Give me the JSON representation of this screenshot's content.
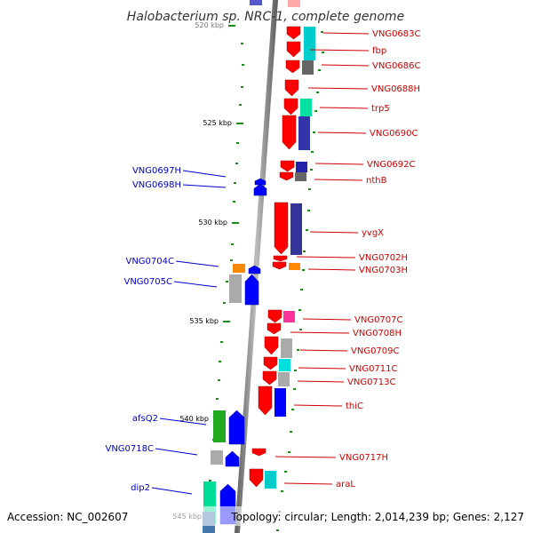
{
  "title": "Halobacterium sp. NRC-1, complete genome",
  "accession": "Accession: NC_002607",
  "topology": "Topology: circular; Length: 2,014,239 bp; Genes: 2,127",
  "colors": {
    "forward_label": "#cc0000",
    "reverse_label": "#0000cc",
    "backbone": "#8a8a8a",
    "tick": "#1a8a1a"
  },
  "ticks": [
    "520 kbp",
    "525 kbp",
    "530 kbp",
    "535 kbp",
    "540 kbp",
    "545 kbp"
  ],
  "forward_genes": [
    {
      "label": "VNG0683C",
      "color": "#ff0000",
      "color2": "#00cccc"
    },
    {
      "label": "fbp",
      "color": "#ff0000",
      "color2": "#00cccc"
    },
    {
      "label": "VNG0686C",
      "color": "#ff0000",
      "color2": "#666666"
    },
    {
      "label": "VNG0688H",
      "color": "#ff0000",
      "color2": ""
    },
    {
      "label": "trp5",
      "color": "#ff0000",
      "color2": "#00e0a0"
    },
    {
      "label": "VNG0690C",
      "color": "#ff0000",
      "color2": "#3333aa"
    },
    {
      "label": "VNG0692C",
      "color": "#ff0000",
      "color2": "#2222aa"
    },
    {
      "label": "nthB",
      "color": "#ff0000",
      "color2": "#666666"
    },
    {
      "label": "yvgX",
      "color": "#ff0000",
      "color2": "#333399"
    },
    {
      "label": "VNG0702H",
      "color": "#ff0000",
      "color2": ""
    },
    {
      "label": "VNG0703H",
      "color": "#ff0000",
      "color2": "#ff8800"
    },
    {
      "label": "VNG0707C",
      "color": "#ff0000",
      "color2": "#ff3399"
    },
    {
      "label": "VNG0708H",
      "color": "#ff0000",
      "color2": ""
    },
    {
      "label": "VNG0709C",
      "color": "#ff0000",
      "color2": "#aaaaaa"
    },
    {
      "label": "VNG0711C",
      "color": "#ff0000",
      "color2": "#00dddd"
    },
    {
      "label": "VNG0713C",
      "color": "#ff0000",
      "color2": "#aaaaaa"
    },
    {
      "label": "thiC",
      "color": "#ff0000",
      "color2": "#0000ff"
    },
    {
      "label": "VNG0717H",
      "color": "#ff0000",
      "color2": ""
    },
    {
      "label": "araL",
      "color": "#ff0000",
      "color2": "#00cccc"
    }
  ],
  "reverse_genes": [
    {
      "label": "VNG0697H",
      "color": "#0000ff",
      "color2": ""
    },
    {
      "label": "VNG0698H",
      "color": "#0000ff",
      "color2": ""
    },
    {
      "label": "VNG0704C",
      "color": "#0000ff",
      "color2": "#ff8800"
    },
    {
      "label": "VNG0705C",
      "color": "#0000ff",
      "color2": "#aaaaaa"
    },
    {
      "label": "afsQ2",
      "color": "#0000ff",
      "color2": "#22aa22"
    },
    {
      "label": "VNG0718C",
      "color": "#0000ff",
      "color2": "#aaaaaa"
    },
    {
      "label": "dip2",
      "color": "#0000ff",
      "color2": "#00dd99"
    }
  ]
}
